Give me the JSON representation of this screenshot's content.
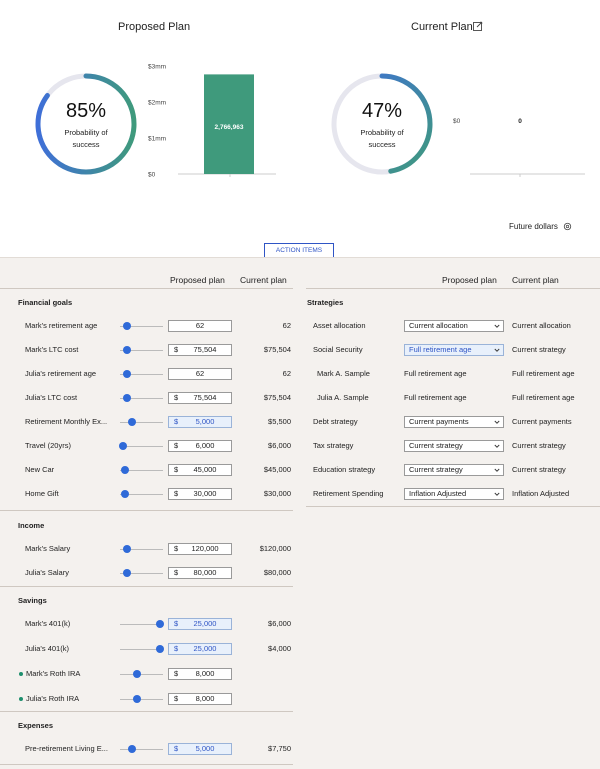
{
  "proposed": {
    "title": "Proposed Plan",
    "pct": "85%",
    "sub": "Probability of success",
    "chart_data": {
      "type": "bar",
      "categories": [
        ""
      ],
      "values": [
        2766963
      ],
      "value_label": "2,766,963",
      "ytick_labels": [
        "$0",
        "$1mm",
        "$2mm",
        "$3mm"
      ],
      "yticks": [
        0,
        1000000,
        2000000,
        3000000
      ],
      "ylim": [
        0,
        3000000
      ],
      "bar_color": "#3f9a7c"
    }
  },
  "current": {
    "title": "Current Plan",
    "pct": "47%",
    "sub": "Probability of success",
    "chart_data": {
      "type": "bar",
      "categories": [
        ""
      ],
      "values": [
        0
      ],
      "value_label": "0",
      "ytick_labels": [
        "$0"
      ],
      "yticks": [
        0
      ]
    }
  },
  "future_label": "Future dollars",
  "action_items_label": "ACTION ITEMS",
  "colors": {
    "accent": "#2f6ad8",
    "teal": "#3f9a7c",
    "ring_track": "#e6e6ee"
  },
  "left": {
    "hdr_proposed": "Proposed plan",
    "hdr_current": "Current plan",
    "sections": {
      "goals": "Financial goals",
      "income": "Income",
      "savings": "Savings",
      "expenses": "Expenses"
    },
    "rows": [
      {
        "label": "Mark's retirement age",
        "currency": "",
        "value": "62",
        "current": "62",
        "knob": 0.17
      },
      {
        "label": "Mark's LTC cost",
        "currency": "$",
        "value": "75,504",
        "current": "$75,504",
        "knob": 0.17
      },
      {
        "label": "Julia's retirement age",
        "currency": "",
        "value": "62",
        "current": "62",
        "knob": 0.17
      },
      {
        "label": "Julia's LTC cost",
        "currency": "$",
        "value": "75,504",
        "current": "$75,504",
        "knob": 0.17
      },
      {
        "label": "Retirement Monthly Ex...",
        "currency": "$",
        "value": "5,000",
        "current": "$5,500",
        "knob": 0.28
      },
      {
        "label": "Travel (20yrs)",
        "currency": "$",
        "value": "6,000",
        "current": "$6,000",
        "knob": 0.08
      },
      {
        "label": "New Car",
        "currency": "$",
        "value": "45,000",
        "current": "$45,000",
        "knob": 0.12
      },
      {
        "label": "Home Gift",
        "currency": "$",
        "value": "30,000",
        "current": "$30,000",
        "knob": 0.12
      },
      {
        "label": "Mark's Salary",
        "currency": "$",
        "value": "120,000",
        "current": "$120,000",
        "knob": 0.17
      },
      {
        "label": "Julia's Salary",
        "currency": "$",
        "value": "80,000",
        "current": "$80,000",
        "knob": 0.17
      },
      {
        "label": "Mark's 401(k)",
        "currency": "$",
        "value": "25,000",
        "current": "$6,000",
        "knob": 0.92
      },
      {
        "label": "Julia's 401(k)",
        "currency": "$",
        "value": "25,000",
        "current": "$4,000",
        "knob": 0.92
      },
      {
        "label": "Mark's Roth IRA",
        "currency": "$",
        "value": "8,000",
        "current": "",
        "knob": 0.4
      },
      {
        "label": "Julia's Roth IRA",
        "currency": "$",
        "value": "8,000",
        "current": "",
        "knob": 0.4
      },
      {
        "label": "Pre-retirement Living E...",
        "currency": "$",
        "value": "5,000",
        "current": "$7,750",
        "knob": 0.28
      }
    ]
  },
  "right": {
    "hdr_proposed": "Proposed plan",
    "hdr_current": "Current plan",
    "section": "Strategies",
    "rows": [
      {
        "label": "Asset allocation",
        "proposed": "Current allocation",
        "current": "Current allocation"
      },
      {
        "label": "Social Security",
        "proposed": "Full retirement age",
        "current": "Current strategy"
      },
      {
        "label": "Mark A. Sample",
        "proposed": "Full retirement age",
        "current": "Full retirement age"
      },
      {
        "label": "Julia A. Sample",
        "proposed": "Full retirement age",
        "current": "Full retirement age"
      },
      {
        "label": "Debt strategy",
        "proposed": "Current payments",
        "current": "Current payments"
      },
      {
        "label": "Tax strategy",
        "proposed": "Current strategy",
        "current": "Current strategy"
      },
      {
        "label": "Education strategy",
        "proposed": "Current strategy",
        "current": "Current strategy"
      },
      {
        "label": "Retirement Spending",
        "proposed": "Inflation Adjusted",
        "current": "Inflation Adjusted"
      }
    ]
  }
}
